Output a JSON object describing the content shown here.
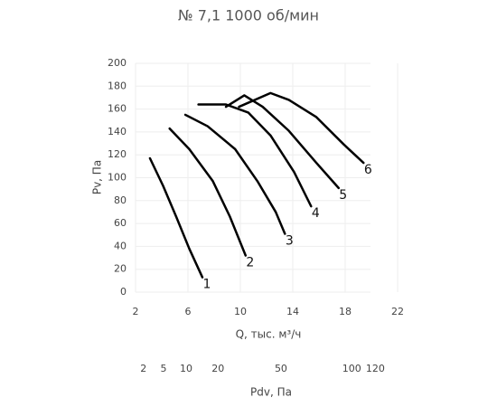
{
  "chart_data": {
    "type": "line",
    "title": "№ 7,1 1000 об/мин",
    "x_label": "Q, тыс. м³/ч",
    "y_label": "Pv, Па",
    "x2_label": "Pdv, Па",
    "xlim": [
      2,
      22
    ],
    "xticks": [
      2,
      6,
      10,
      14,
      18,
      22
    ],
    "ylim": [
      0,
      200
    ],
    "yticks": [
      0,
      20,
      40,
      60,
      80,
      100,
      120,
      140,
      160,
      180,
      200
    ],
    "x2ticks": [
      {
        "value": 2.6,
        "label": "2"
      },
      {
        "value": 4.14,
        "label": "5"
      },
      {
        "value": 5.86,
        "label": "10"
      },
      {
        "value": 8.29,
        "label": "20"
      },
      {
        "value": 13.1,
        "label": "50"
      },
      {
        "value": 18.5,
        "label": "100"
      },
      {
        "value": 20.3,
        "label": "120"
      }
    ],
    "grid": true,
    "series": [
      {
        "name": "1",
        "color": "#000000",
        "x": [
          3.1,
          4.1,
          5.1,
          6.1,
          7.1
        ],
        "values": [
          117,
          93,
          66,
          38,
          13
        ]
      },
      {
        "name": "2",
        "color": "#000000",
        "x": [
          4.6,
          6.1,
          7.9,
          9.2,
          10.4
        ],
        "values": [
          143,
          125,
          97,
          66,
          32
        ]
      },
      {
        "name": "3",
        "color": "#000000",
        "x": [
          5.8,
          7.5,
          9.6,
          11.3,
          12.7,
          13.4
        ],
        "values": [
          155,
          145,
          125,
          97,
          70,
          51
        ]
      },
      {
        "name": "4",
        "color": "#000000",
        "x": [
          6.8,
          8.9,
          10.6,
          12.3,
          14.1,
          15.4
        ],
        "values": [
          164,
          164,
          157,
          137,
          105,
          75
        ]
      },
      {
        "name": "5",
        "color": "#000000",
        "x": [
          8.9,
          10.3,
          11.7,
          13.7,
          15.8,
          17.5
        ],
        "values": [
          162,
          172,
          162,
          141,
          113,
          91
        ]
      },
      {
        "name": "6",
        "color": "#000000",
        "x": [
          9.9,
          12.3,
          13.7,
          15.8,
          17.9,
          19.4
        ],
        "values": [
          162,
          174,
          168,
          153,
          129,
          113
        ]
      }
    ]
  }
}
